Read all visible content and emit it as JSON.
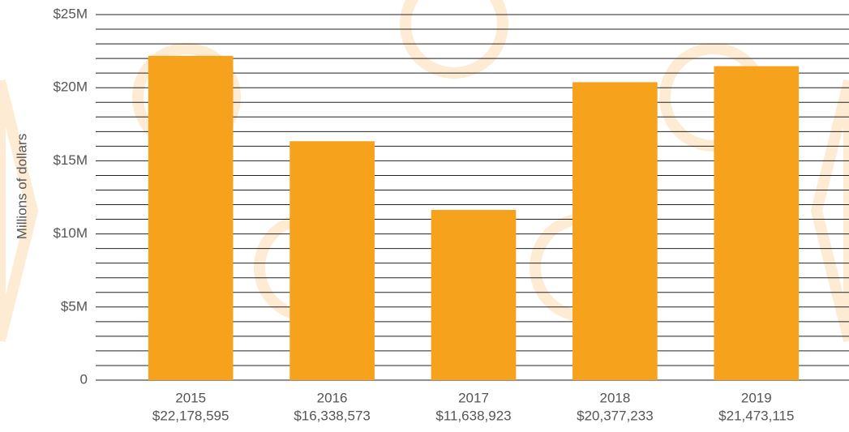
{
  "chart_data": {
    "type": "bar",
    "y_label": "Millions of dollars",
    "categories": [
      "2015",
      "2016",
      "2017",
      "2018",
      "2019"
    ],
    "values": [
      22178595,
      16338573,
      11638923,
      20377233,
      21473115
    ],
    "value_labels": [
      "$22,178,595",
      "$16,338,573",
      "$11,638,923",
      "$20,377,233",
      "$21,473,115"
    ],
    "color": "#f6a21d",
    "ylim": [
      0,
      25000000
    ],
    "yticks": [
      0,
      {
        "value": 5000000,
        "label": "$5M"
      },
      {
        "value": 10000000,
        "label": "$10M"
      },
      {
        "value": 15000000,
        "label": "$15M"
      },
      {
        "value": 20000000,
        "label": "$20M"
      },
      {
        "value": 25000000,
        "label": "$25M"
      }
    ],
    "minor_yticks": [
      1000000,
      2000000,
      3000000,
      4000000,
      6000000,
      7000000,
      8000000,
      9000000,
      11000000,
      12000000,
      13000000,
      14000000,
      16000000,
      17000000,
      18000000,
      19000000,
      21000000,
      22000000,
      23000000,
      24000000
    ],
    "grid": true
  }
}
